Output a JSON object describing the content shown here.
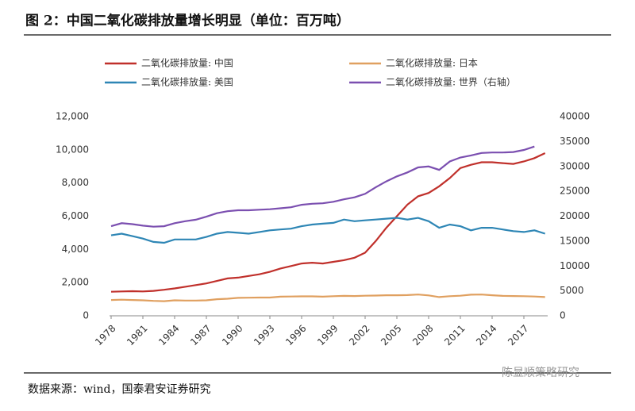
{
  "chart_data": {
    "type": "line",
    "title": "图 2：中国二氧化碳排放量增长明显（单位：百万吨）",
    "source": "数据来源：wind，国泰君安证券研究",
    "watermark": "陈显顺策略研究",
    "x": [
      1978,
      1979,
      1980,
      1981,
      1982,
      1983,
      1984,
      1985,
      1986,
      1987,
      1988,
      1989,
      1990,
      1991,
      1992,
      1993,
      1994,
      1995,
      1996,
      1997,
      1998,
      1999,
      2000,
      2001,
      2002,
      2003,
      2004,
      2005,
      2006,
      2007,
      2008,
      2009,
      2010,
      2011,
      2012,
      2013,
      2014,
      2015,
      2016,
      2017,
      2018,
      2019
    ],
    "xlim": [
      1977.85,
      2019.25
    ],
    "xticks": [
      1978,
      1981,
      1984,
      1987,
      1990,
      1993,
      1996,
      1999,
      2002,
      2005,
      2008,
      2011,
      2014,
      2017
    ],
    "ylim": [
      0,
      12000
    ],
    "yticks": [
      0,
      {
        "value": 2000,
        "label": "2,000"
      },
      {
        "value": 4000,
        "label": "4,000"
      },
      {
        "value": 6000,
        "label": "6,000"
      },
      {
        "value": 8000,
        "label": "8,000"
      },
      {
        "value": 10000,
        "label": "10,000"
      },
      {
        "value": 12000,
        "label": "12,000"
      }
    ],
    "y2lim": [
      0,
      40000
    ],
    "y2ticks": [
      0,
      5000,
      10000,
      15000,
      20000,
      25000,
      30000,
      35000,
      40000
    ],
    "series": [
      {
        "name": "二氧化碳排放量: 中国",
        "color": "#c0302b",
        "values": [
          1450,
          1470,
          1480,
          1470,
          1500,
          1570,
          1650,
          1750,
          1850,
          1950,
          2100,
          2250,
          2300,
          2400,
          2500,
          2650,
          2850,
          3000,
          3150,
          3200,
          3150,
          3250,
          3350,
          3500,
          3800,
          4500,
          5300,
          6000,
          6700,
          7200,
          7400,
          7800,
          8300,
          8900,
          9100,
          9250,
          9250,
          9200,
          9150,
          9300,
          9500,
          9800
        ]
      },
      {
        "name": "二氧化碳排放量: 日本",
        "color": "#e0a060",
        "values": [
          950,
          970,
          950,
          930,
          900,
          880,
          930,
          920,
          920,
          930,
          1000,
          1030,
          1080,
          1090,
          1100,
          1100,
          1150,
          1160,
          1170,
          1170,
          1150,
          1180,
          1200,
          1190,
          1210,
          1220,
          1240,
          1240,
          1250,
          1280,
          1230,
          1130,
          1180,
          1210,
          1270,
          1280,
          1240,
          1200,
          1190,
          1180,
          1160,
          1130
        ]
      },
      {
        "name": "二氧化碳排放量: 美国",
        "color": "#2e86b5",
        "values": [
          4850,
          4950,
          4800,
          4650,
          4450,
          4400,
          4600,
          4600,
          4600,
          4750,
          4950,
          5050,
          5000,
          4950,
          5050,
          5150,
          5200,
          5250,
          5400,
          5500,
          5550,
          5600,
          5800,
          5700,
          5750,
          5800,
          5850,
          5900,
          5800,
          5900,
          5700,
          5300,
          5500,
          5400,
          5150,
          5300,
          5300,
          5200,
          5100,
          5050,
          5150,
          4950
        ]
      },
      {
        "name": "二氧化碳排放量: 世界（右轴）",
        "color": "#7b4fb0",
        "axis": "y2",
        "values": [
          18000,
          18600,
          18400,
          18100,
          17900,
          18000,
          18600,
          19000,
          19300,
          19900,
          20600,
          21000,
          21200,
          21200,
          21300,
          21400,
          21600,
          21800,
          22300,
          22500,
          22600,
          22900,
          23400,
          23800,
          24500,
          25800,
          27000,
          28000,
          28800,
          29800,
          30000,
          29300,
          31000,
          31800,
          32200,
          32700,
          32800,
          32800,
          32900,
          33300,
          34000,
          null
        ]
      }
    ]
  }
}
